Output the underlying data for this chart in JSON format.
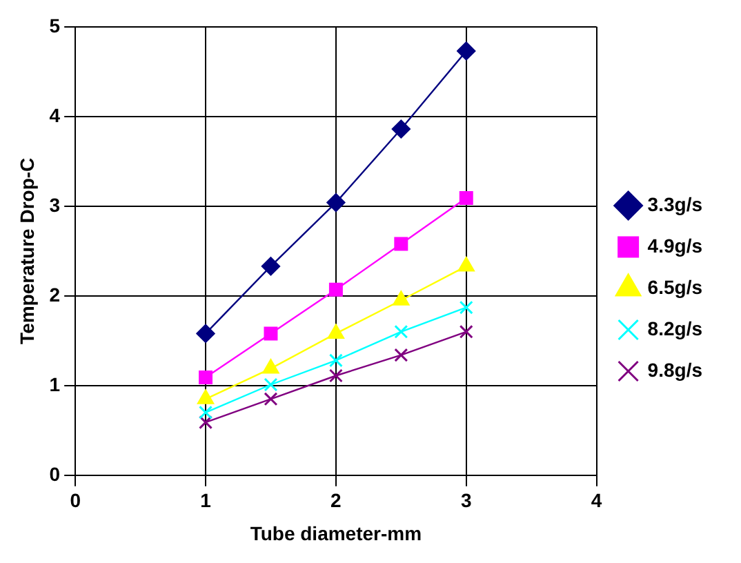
{
  "chart_data": {
    "type": "line",
    "xlabel": "Tube diameter-mm",
    "ylabel": "Temperature Drop-C",
    "x": [
      1,
      1.5,
      2,
      2.5,
      3
    ],
    "xlim": [
      0,
      4
    ],
    "xticks": [
      0,
      1,
      2,
      3,
      4
    ],
    "ylim": [
      0,
      5
    ],
    "yticks": [
      0,
      1,
      2,
      3,
      4,
      5
    ],
    "grid": true,
    "legend": "right",
    "line_style": "solid",
    "series": [
      {
        "name": "3.3g/s",
        "color": "#000080",
        "marker": "diamond",
        "values": [
          1.58,
          2.33,
          3.04,
          3.86,
          4.73
        ]
      },
      {
        "name": "4.9g/s",
        "color": "#ff00ff",
        "marker": "square",
        "values": [
          1.09,
          1.58,
          2.07,
          2.58,
          3.09
        ]
      },
      {
        "name": "6.5g/s",
        "color": "#ffff00",
        "marker": "triangle",
        "values": [
          0.85,
          1.19,
          1.58,
          1.95,
          2.33
        ]
      },
      {
        "name": "8.2g/s",
        "color": "#00ffff",
        "marker": "cross",
        "values": [
          0.7,
          1.01,
          1.28,
          1.6,
          1.87
        ]
      },
      {
        "name": "9.8g/s",
        "color": "#800080",
        "marker": "cross",
        "values": [
          0.59,
          0.85,
          1.11,
          1.34,
          1.6
        ]
      }
    ]
  }
}
